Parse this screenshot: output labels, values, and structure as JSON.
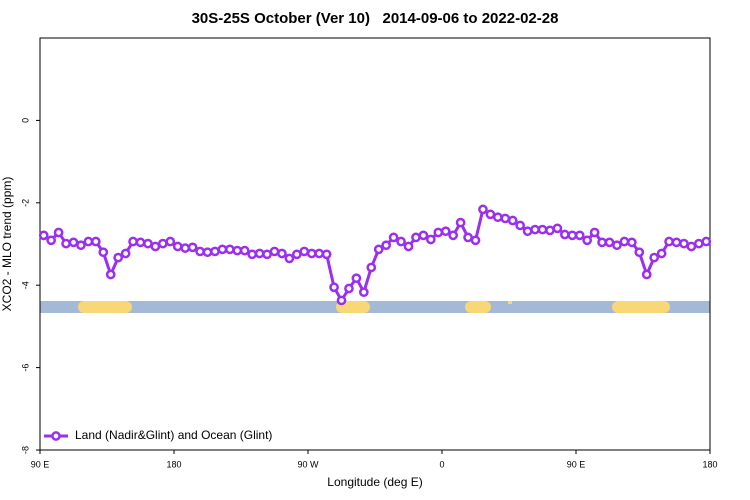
{
  "chart_data": {
    "type": "line",
    "title": "30S-25S October (Ver 10)   2014-09-06 to 2022-02-28",
    "xlabel": "Longitude (deg E)",
    "ylabel": "XCO2 - MLO trend (ppm)",
    "xlim": [
      90,
      540
    ],
    "ylim": [
      -8,
      2
    ],
    "xticks": [
      {
        "value": 90,
        "label": "90 E"
      },
      180,
      {
        "value": 270,
        "label": "90 W"
      },
      {
        "value": 360,
        "label": "0"
      },
      {
        "value": 450,
        "label": "90 E"
      },
      {
        "value": 540,
        "label": "180"
      }
    ],
    "yticks": [
      0,
      -2,
      -4,
      -6,
      -8
    ],
    "grid": false,
    "legend": "bottomleft",
    "x": [
      92.5,
      97.5,
      102.5,
      107.5,
      112.5,
      117.5,
      122.5,
      127.5,
      132.5,
      137.5,
      142.5,
      147.5,
      152.5,
      157.5,
      162.5,
      167.5,
      172.5,
      177.5,
      182.5,
      187.5,
      192.5,
      197.5,
      202.5,
      207.5,
      212.5,
      217.5,
      222.5,
      227.5,
      232.5,
      237.5,
      242.5,
      247.5,
      252.5,
      257.5,
      262.5,
      267.5,
      272.5,
      277.5,
      282.5,
      287.5,
      292.5,
      297.5,
      302.5,
      307.5,
      312.5,
      317.5,
      322.5,
      327.5,
      332.5,
      337.5,
      342.5,
      347.5,
      352.5,
      357.5,
      362.5,
      367.5,
      372.5,
      377.5,
      382.5,
      387.5,
      392.5,
      397.5,
      402.5,
      407.5,
      412.5,
      417.5,
      422.5,
      427.5,
      432.5,
      437.5,
      442.5,
      447.5,
      452.5,
      457.5,
      462.5,
      467.5,
      472.5,
      477.5,
      482.5,
      487.5,
      492.5,
      497.5,
      502.5,
      507.5,
      512.5,
      517.5,
      522.5,
      527.5,
      532.5,
      537.5
    ],
    "series": [
      {
        "name": "Land (Nadir&Glint) and Ocean (Glint)",
        "color": "#9b2ff0",
        "values": [
          -2.79,
          -2.91,
          -2.72,
          -2.99,
          -2.96,
          -3.03,
          -2.94,
          -2.94,
          -3.2,
          -3.74,
          -3.33,
          -3.23,
          -2.94,
          -2.96,
          -2.99,
          -3.06,
          -2.99,
          -2.94,
          -3.06,
          -3.1,
          -3.08,
          -3.18,
          -3.2,
          -3.18,
          -3.13,
          -3.13,
          -3.16,
          -3.16,
          -3.25,
          -3.23,
          -3.25,
          -3.18,
          -3.23,
          -3.35,
          -3.25,
          -3.18,
          -3.23,
          -3.23,
          -3.25,
          -4.05,
          -4.37,
          -4.08,
          -3.83,
          -4.17,
          -3.57,
          -3.13,
          -3.03,
          -2.84,
          -2.94,
          -3.06,
          -2.84,
          -2.79,
          -2.89,
          -2.72,
          -2.69,
          -2.79,
          -2.48,
          -2.84,
          -2.91,
          -2.16,
          -2.28,
          -2.35,
          -2.38,
          -2.43,
          -2.55,
          -2.69,
          -2.65,
          -2.65,
          -2.67,
          -2.62,
          -2.77,
          -2.79,
          -2.79,
          -2.91,
          -2.72,
          -2.96,
          -2.96,
          -3.03,
          -2.94,
          -2.96,
          -3.2,
          -3.74,
          -3.33,
          -3.23,
          -2.94,
          -2.96,
          -2.99,
          -3.06,
          -2.99,
          -2.94
        ]
      }
    ]
  }
}
